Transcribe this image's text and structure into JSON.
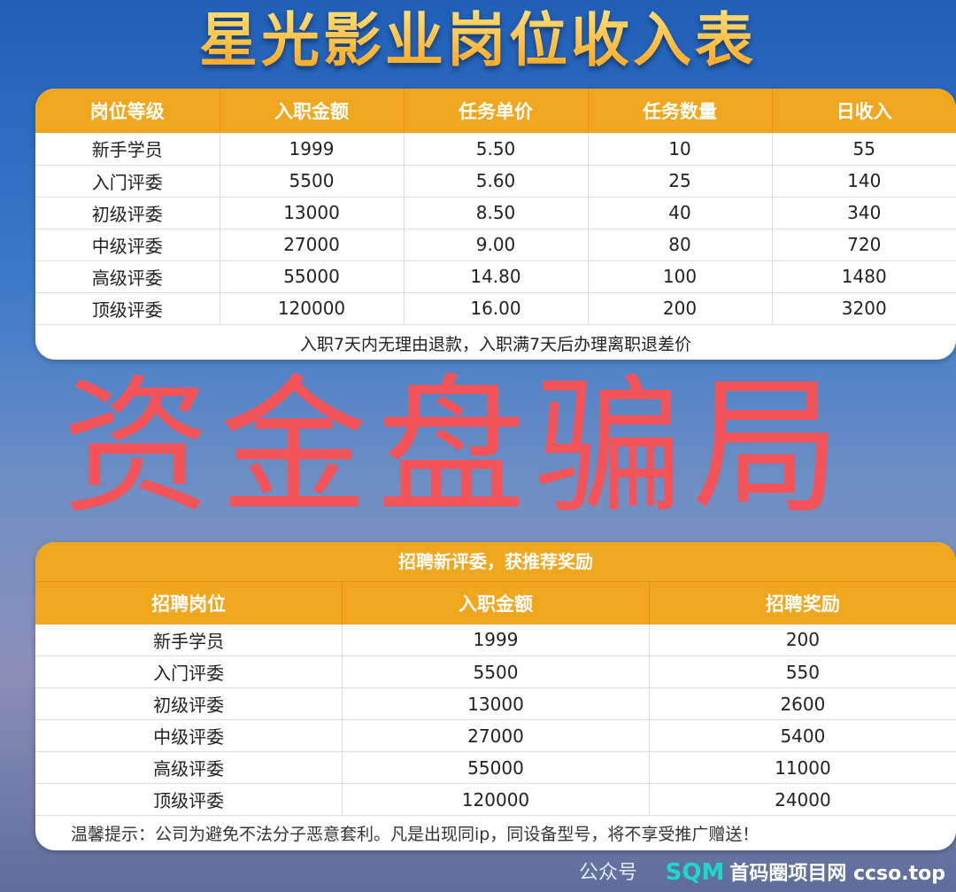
{
  "title": "星光影业岗位收入表",
  "income_table": {
    "headers": [
      "岗位等级",
      "入职金额",
      "任务单价",
      "任务数量",
      "日收入"
    ],
    "rows": [
      [
        "新手学员",
        "1999",
        "5.50",
        "10",
        "55"
      ],
      [
        "入门评委",
        "5500",
        "5.60",
        "25",
        "140"
      ],
      [
        "初级评委",
        "13000",
        "8.50",
        "40",
        "340"
      ],
      [
        "中级评委",
        "27000",
        "9.00",
        "80",
        "720"
      ],
      [
        "高级评委",
        "55000",
        "14.80",
        "100",
        "1480"
      ],
      [
        "顶级评委",
        "120000",
        "16.00",
        "200",
        "3200"
      ]
    ],
    "note": "入职7天内无理由退款，入职满7天后办理离职退差价"
  },
  "referral_table": {
    "title": "招聘新评委，获推荐奖励",
    "headers": [
      "招聘岗位",
      "入职金额",
      "招聘奖励"
    ],
    "rows": [
      [
        "新手学员",
        "1999",
        "200"
      ],
      [
        "入门评委",
        "5500",
        "550"
      ],
      [
        "初级评委",
        "13000",
        "2600"
      ],
      [
        "中级评委",
        "27000",
        "5400"
      ],
      [
        "高级评委",
        "55000",
        "11000"
      ],
      [
        "顶级评委",
        "120000",
        "24000"
      ]
    ],
    "tip": "温馨提示：公司为避免不法分子恶意套利。凡是出现同ip，同设备型号，将不享受推广赠送！"
  },
  "overlay_text": "资金盘骗局",
  "watermark": "公众号",
  "logo": {
    "mark": "SQM",
    "text": "首码圈项目网 ccso.top"
  },
  "colors": {
    "header": "#f0a71e",
    "overlay": "#f2545a",
    "background": "#1f5fb8"
  }
}
